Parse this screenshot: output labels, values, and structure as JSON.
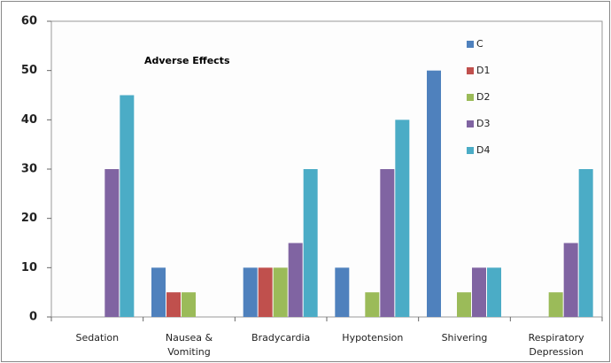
{
  "chart_data": {
    "type": "bar",
    "title": "Adverse Effects",
    "categories": [
      "Sedation",
      "Nausea &\nVomiting",
      "Bradycardia",
      "Hypotension",
      "Shivering",
      "Respiratory\nDepression"
    ],
    "series": [
      {
        "name": "C",
        "color": "#4f81bd",
        "values": [
          0,
          10,
          10,
          10,
          50,
          0
        ]
      },
      {
        "name": "D1",
        "color": "#c0504d",
        "values": [
          0,
          5,
          10,
          0,
          0,
          0
        ]
      },
      {
        "name": "D2",
        "color": "#9bbb59",
        "values": [
          0,
          5,
          10,
          5,
          5,
          5
        ]
      },
      {
        "name": "D3",
        "color": "#8064a2",
        "values": [
          30,
          0,
          15,
          30,
          10,
          15
        ]
      },
      {
        "name": "D4",
        "color": "#4bacc6",
        "values": [
          45,
          0,
          30,
          40,
          10,
          30
        ]
      }
    ],
    "ylim": [
      0,
      60
    ],
    "yticks": [
      0,
      10,
      20,
      30,
      40,
      50,
      60
    ],
    "grid": false,
    "legend": "top-right"
  }
}
